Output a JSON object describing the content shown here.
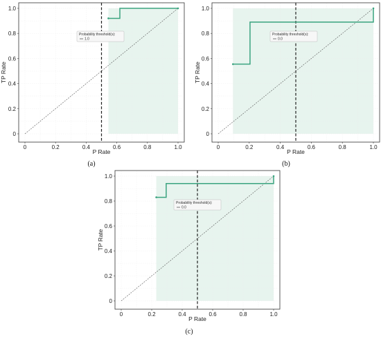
{
  "chart_data": [
    {
      "panel_label": "(a)",
      "type": "line",
      "xlabel": "P Rate",
      "ylabel": "TP Rate",
      "xlim": [
        0,
        1
      ],
      "ylim": [
        0,
        1
      ],
      "xticks": [
        "0",
        "0.2",
        "0.4",
        "0.6",
        "0.8",
        "1.0"
      ],
      "yticks": [
        "0",
        "0.2",
        "0.4",
        "0.6",
        "0.8",
        "1.0"
      ],
      "threshold_x": 0.5,
      "legend_title": "Probability threshold(s):",
      "legend_entry": "1.0",
      "series": [
        {
          "x": [
            0.545,
            0.62,
            0.62,
            0.62,
            0.62,
            1.0
          ],
          "y": [
            0.92,
            0.92,
            0.96,
            0.96,
            1.0,
            1.0
          ]
        }
      ],
      "diagonal": [
        [
          0,
          0
        ],
        [
          1,
          1
        ]
      ],
      "shade_from_x": 0.545,
      "grid": true,
      "colors": {
        "series": "#3aa37f",
        "fill": "#e7f4ee",
        "threshold": "#222222",
        "diagonal": "#555555"
      }
    },
    {
      "panel_label": "(b)",
      "type": "line",
      "xlabel": "P Rate",
      "ylabel": "TP Rate",
      "xlim": [
        0,
        1
      ],
      "ylim": [
        0,
        1
      ],
      "xticks": [
        "0",
        "0.2",
        "0.4",
        "0.6",
        "0.8",
        "1.0"
      ],
      "yticks": [
        "0",
        "0.2",
        "0.4",
        "0.6",
        "0.8",
        "1.0"
      ],
      "threshold_x": 0.5,
      "legend_title": "Probability threshold(s):",
      "legend_entry": "0.0",
      "series": [
        {
          "x": [
            0.095,
            0.205,
            0.205,
            1.0,
            1.0
          ],
          "y": [
            0.555,
            0.555,
            0.89,
            0.89,
            1.0
          ]
        }
      ],
      "diagonal": [
        [
          0,
          0
        ],
        [
          1,
          1
        ]
      ],
      "shade_from_x": 0.095,
      "grid": true,
      "colors": {
        "series": "#3aa37f",
        "fill": "#e7f4ee",
        "threshold": "#222222",
        "diagonal": "#555555"
      }
    },
    {
      "panel_label": "(c)",
      "type": "line",
      "xlabel": "P Rate",
      "ylabel": "TP Rate",
      "xlim": [
        0,
        1
      ],
      "ylim": [
        0,
        1
      ],
      "xticks": [
        "0",
        "0.2",
        "0.4",
        "0.6",
        "0.8",
        "1.0"
      ],
      "yticks": [
        "0",
        "0.2",
        "0.4",
        "0.6",
        "0.8",
        "1.0"
      ],
      "threshold_x": 0.5,
      "legend_title": "Probability threshold(s):",
      "legend_entry": "0.0",
      "series": [
        {
          "x": [
            0.23,
            0.295,
            0.295,
            1.0,
            1.0
          ],
          "y": [
            0.83,
            0.83,
            0.94,
            0.94,
            1.0
          ]
        }
      ],
      "diagonal": [
        [
          0,
          0
        ],
        [
          1,
          1
        ]
      ],
      "shade_from_x": 0.23,
      "grid": true,
      "colors": {
        "series": "#3aa37f",
        "fill": "#e7f4ee",
        "threshold": "#222222",
        "diagonal": "#555555"
      }
    }
  ]
}
